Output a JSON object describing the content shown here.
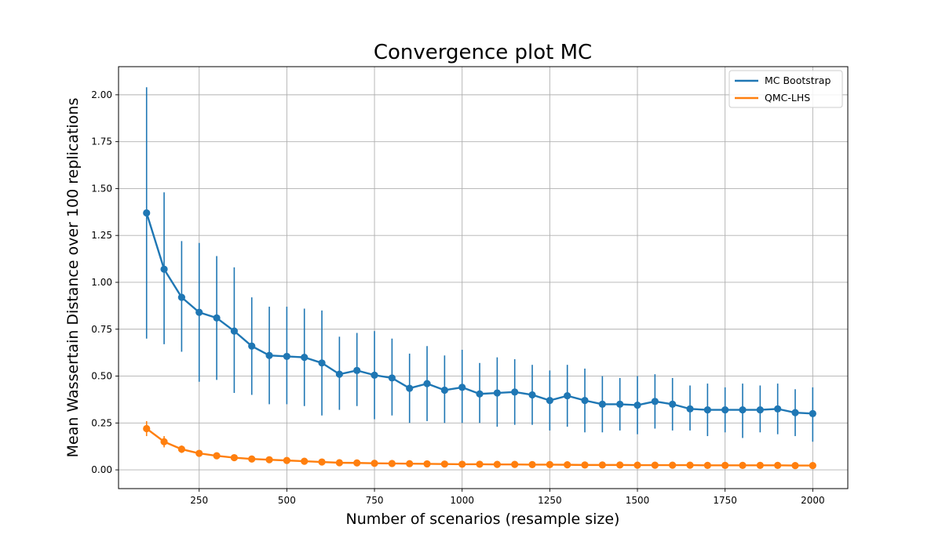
{
  "chart_data": {
    "type": "line",
    "title": "Convergence plot MC",
    "xlabel": "Number of scenarios (resample size)",
    "ylabel": "Mean Wassertain Distance over 100 replications",
    "xlim": [
      20,
      2100
    ],
    "ylim": [
      -0.1,
      2.15
    ],
    "xticks": [
      250,
      500,
      750,
      1000,
      1250,
      1500,
      1750,
      2000
    ],
    "yticks": [
      0.0,
      0.25,
      0.5,
      0.75,
      1.0,
      1.25,
      1.5,
      1.75,
      2.0
    ],
    "ytick_labels": [
      "0.00",
      "0.25",
      "0.50",
      "0.75",
      "1.00",
      "1.25",
      "1.50",
      "1.75",
      "2.00"
    ],
    "grid": true,
    "legend_position": "top-right",
    "x": [
      100,
      150,
      200,
      250,
      300,
      350,
      400,
      450,
      500,
      550,
      600,
      650,
      700,
      750,
      800,
      850,
      900,
      950,
      1000,
      1050,
      1100,
      1150,
      1200,
      1250,
      1300,
      1350,
      1400,
      1450,
      1500,
      1550,
      1600,
      1650,
      1700,
      1750,
      1800,
      1850,
      1900,
      1950,
      2000
    ],
    "series": [
      {
        "name": "MC Bootstrap",
        "color": "#1f77b4",
        "values": [
          1.37,
          1.07,
          0.92,
          0.84,
          0.81,
          0.74,
          0.66,
          0.61,
          0.605,
          0.6,
          0.57,
          0.51,
          0.53,
          0.505,
          0.49,
          0.435,
          0.46,
          0.425,
          0.44,
          0.405,
          0.41,
          0.415,
          0.4,
          0.37,
          0.395,
          0.37,
          0.35,
          0.35,
          0.345,
          0.365,
          0.35,
          0.325,
          0.32,
          0.32,
          0.32,
          0.32,
          0.325,
          0.305,
          0.3
        ],
        "err_low": [
          0.7,
          0.67,
          0.63,
          0.47,
          0.48,
          0.41,
          0.4,
          0.35,
          0.35,
          0.34,
          0.29,
          0.32,
          0.34,
          0.27,
          0.29,
          0.25,
          0.26,
          0.25,
          0.25,
          0.25,
          0.23,
          0.24,
          0.24,
          0.21,
          0.23,
          0.2,
          0.2,
          0.21,
          0.19,
          0.22,
          0.21,
          0.21,
          0.18,
          0.2,
          0.17,
          0.2,
          0.19,
          0.18,
          0.15
        ],
        "err_high": [
          2.04,
          1.48,
          1.22,
          1.21,
          1.14,
          1.08,
          0.92,
          0.87,
          0.87,
          0.86,
          0.85,
          0.71,
          0.73,
          0.74,
          0.7,
          0.62,
          0.66,
          0.61,
          0.64,
          0.57,
          0.6,
          0.59,
          0.56,
          0.53,
          0.56,
          0.54,
          0.5,
          0.49,
          0.5,
          0.51,
          0.49,
          0.45,
          0.46,
          0.44,
          0.46,
          0.45,
          0.46,
          0.43,
          0.44
        ]
      },
      {
        "name": "QMC-LHS",
        "color": "#ff7f0e",
        "values": [
          0.22,
          0.15,
          0.11,
          0.088,
          0.075,
          0.065,
          0.058,
          0.054,
          0.05,
          0.046,
          0.042,
          0.038,
          0.037,
          0.035,
          0.034,
          0.033,
          0.032,
          0.031,
          0.03,
          0.03,
          0.029,
          0.029,
          0.028,
          0.028,
          0.027,
          0.026,
          0.026,
          0.026,
          0.025,
          0.025,
          0.025,
          0.025,
          0.024,
          0.024,
          0.024,
          0.024,
          0.024,
          0.023,
          0.023
        ],
        "err_low": [
          0.18,
          0.12,
          0.09,
          0.075,
          0.063,
          0.055,
          0.05,
          0.047,
          0.043,
          0.04,
          0.036,
          0.033,
          0.032,
          0.031,
          0.03,
          0.029,
          0.028,
          0.027,
          0.027,
          0.026,
          0.026,
          0.025,
          0.025,
          0.025,
          0.024,
          0.023,
          0.023,
          0.023,
          0.022,
          0.022,
          0.022,
          0.022,
          0.021,
          0.021,
          0.021,
          0.021,
          0.021,
          0.02,
          0.02
        ],
        "err_high": [
          0.26,
          0.18,
          0.13,
          0.1,
          0.087,
          0.075,
          0.066,
          0.061,
          0.057,
          0.052,
          0.048,
          0.043,
          0.042,
          0.039,
          0.038,
          0.037,
          0.036,
          0.035,
          0.033,
          0.034,
          0.032,
          0.033,
          0.031,
          0.031,
          0.03,
          0.029,
          0.029,
          0.029,
          0.028,
          0.028,
          0.028,
          0.028,
          0.027,
          0.027,
          0.027,
          0.027,
          0.027,
          0.026,
          0.026
        ]
      }
    ]
  }
}
